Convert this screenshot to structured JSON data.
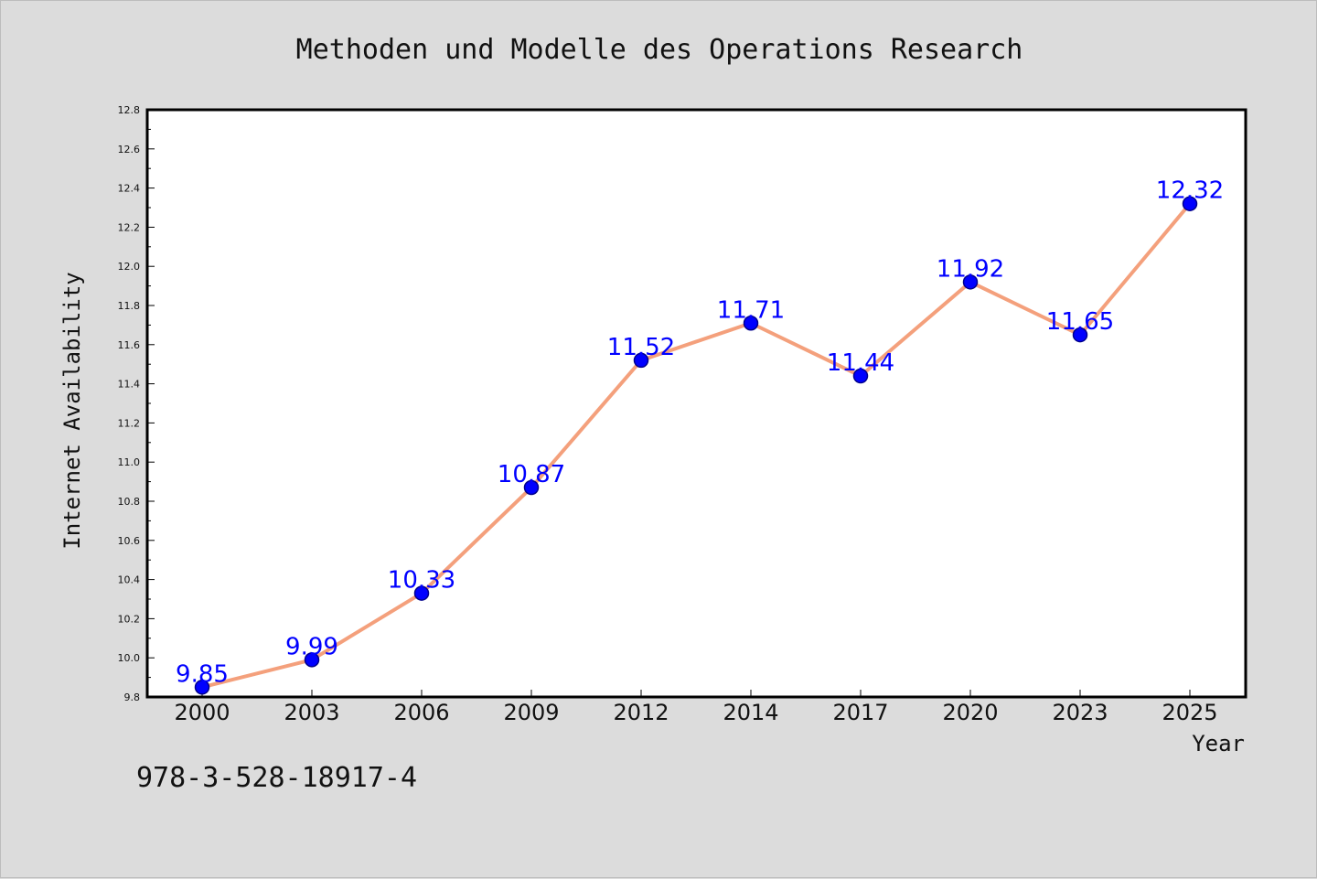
{
  "footer_text": "978-3-528-18917-4",
  "chart_data": {
    "type": "line",
    "title": "Methoden und Modelle des Operations Research",
    "xlabel": "Year",
    "ylabel": "Internet Availability",
    "categories": [
      "2000",
      "2003",
      "2006",
      "2009",
      "2012",
      "2014",
      "2017",
      "2020",
      "2023",
      "2025"
    ],
    "values": [
      9.85,
      9.99,
      10.33,
      10.87,
      11.52,
      11.71,
      11.44,
      11.92,
      11.65,
      12.32
    ],
    "data_labels": [
      "9.85",
      "9.99",
      "10.33",
      "10.87",
      "11.52",
      "11.71",
      "11.44",
      "11.92",
      "11.65",
      "12.32"
    ],
    "ylim": [
      9.8,
      12.8
    ],
    "yticks": [
      "9.8",
      "10.0",
      "10.2",
      "10.4",
      "10.6",
      "10.8",
      "11.0",
      "11.2",
      "11.4",
      "11.6",
      "11.8",
      "12.0",
      "12.2",
      "12.4",
      "12.6",
      "12.8"
    ],
    "grid": false,
    "colors": {
      "line": "#f4a07c",
      "marker": "#0000ff",
      "marker_edge": "#00008b",
      "data_label": "#0000ff",
      "plot_bg": "#ffffff",
      "page_bg": "#dcdcdc"
    }
  }
}
